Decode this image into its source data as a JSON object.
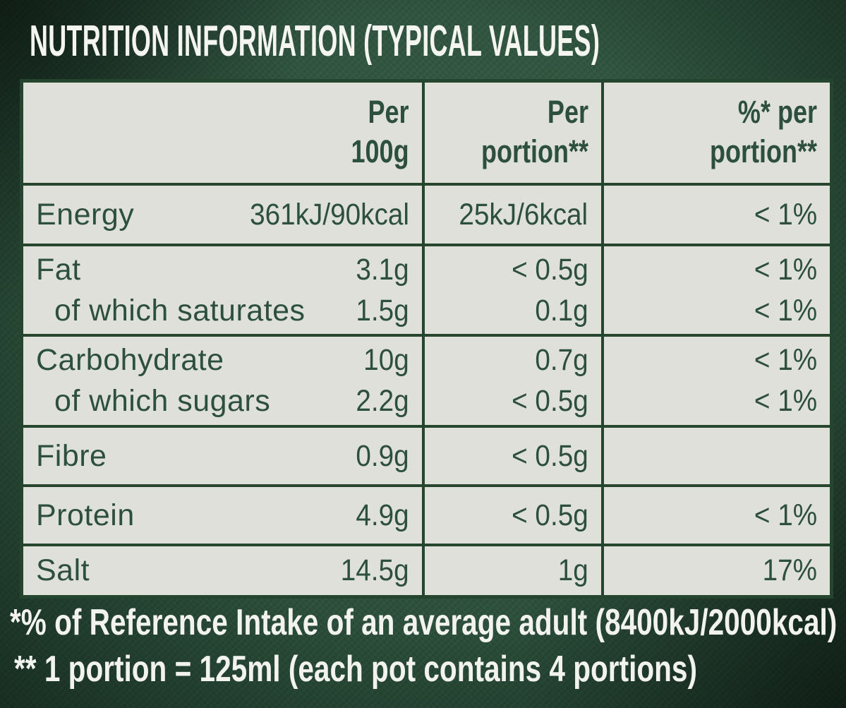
{
  "title": "NUTRITION INFORMATION (TYPICAL VALUES)",
  "colors": {
    "background_green": "#2b4e3a",
    "cell_grey": "#e0e0db",
    "text_green": "#2d4f3d",
    "border_green": "#25452f",
    "text_white": "#f2f2ee"
  },
  "table": {
    "headers": {
      "per_100g": "Per\n100g",
      "per_portion": "Per\nportion**",
      "pct_per_portion": "%* per\nportion**"
    },
    "rows": [
      {
        "lines": [
          {
            "label": "Energy",
            "per_100g": "361kJ/90kcal",
            "per_portion": "25kJ/6kcal",
            "pct_per_portion": "< 1%"
          }
        ]
      },
      {
        "lines": [
          {
            "label": "Fat",
            "per_100g": "3.1g",
            "per_portion": "< 0.5g",
            "pct_per_portion": "< 1%"
          },
          {
            "label": "of which saturates",
            "per_100g": "1.5g",
            "per_portion": "0.1g",
            "pct_per_portion": "< 1%"
          }
        ]
      },
      {
        "lines": [
          {
            "label": "Carbohydrate",
            "per_100g": "10g",
            "per_portion": "0.7g",
            "pct_per_portion": "< 1%"
          },
          {
            "label": "of which sugars",
            "per_100g": "2.2g",
            "per_portion": "< 0.5g",
            "pct_per_portion": "< 1%"
          }
        ]
      },
      {
        "lines": [
          {
            "label": "Fibre",
            "per_100g": "0.9g",
            "per_portion": "< 0.5g",
            "pct_per_portion": ""
          }
        ]
      },
      {
        "lines": [
          {
            "label": "Protein",
            "per_100g": "4.9g",
            "per_portion": "< 0.5g",
            "pct_per_portion": "< 1%"
          }
        ]
      },
      {
        "lines": [
          {
            "label": "Salt",
            "per_100g": "14.5g",
            "per_portion": "1g",
            "pct_per_portion": "17%"
          }
        ]
      }
    ]
  },
  "footnotes": {
    "line1": "*% of Reference Intake of an average adult (8400kJ/2000kcal)",
    "line2": "** 1 portion = 125ml (each pot contains 4 portions)"
  }
}
